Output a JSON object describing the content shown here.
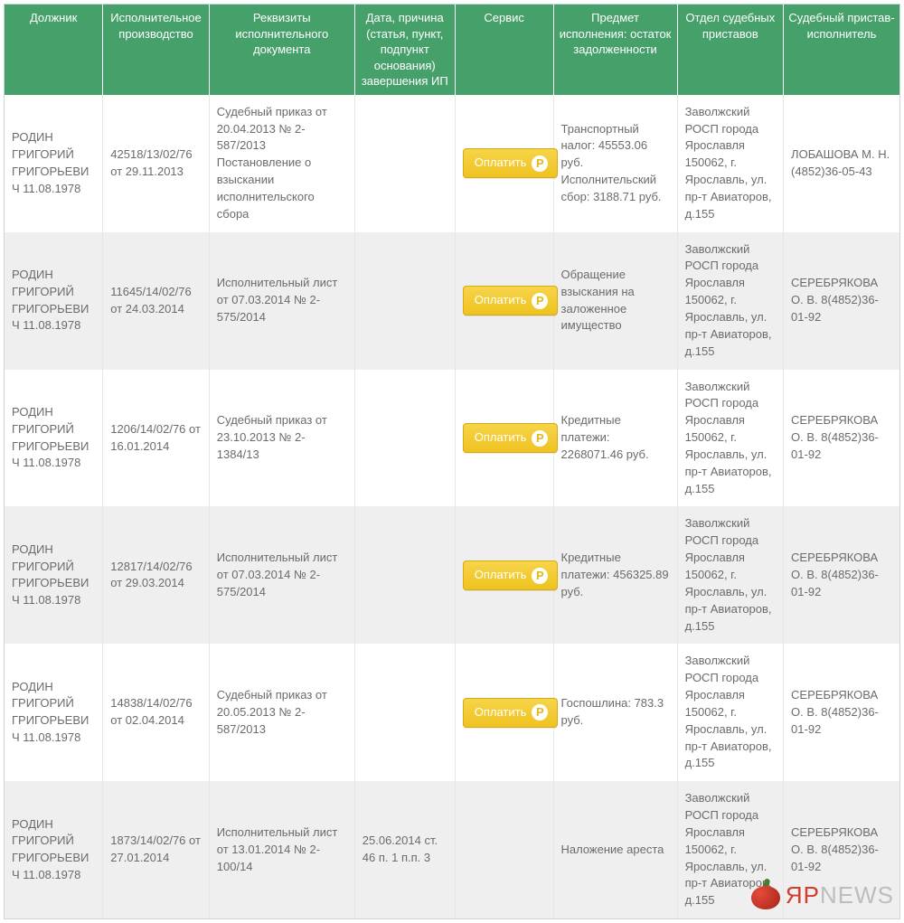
{
  "colors": {
    "header_bg": "#46a06a",
    "header_text": "#ffffff",
    "row_odd": "#ffffff",
    "row_even": "#efefef",
    "cell_text": "#6b6b6b",
    "cell_border": "#e6e6e6",
    "btn_top": "#f6d54a",
    "btn_bottom": "#efc21f",
    "btn_border": "#d9a813",
    "wm_red": "#d43a2e",
    "wm_gray": "#bdbdbd"
  },
  "columns": [
    "Должник",
    "Исполнительное производство",
    "Реквизиты исполнительного документа",
    "Дата, причина (статья, пункт, подпункт основания) завершения ИП",
    "Сервис",
    "Предмет исполнения: остаток задолженности",
    "Отдел судебных приставов",
    "Судебный пристав-исполнитель"
  ],
  "pay_label": "Оплатить",
  "ruble_glyph": "Р",
  "rows": [
    {
      "debtor": "РОДИН ГРИГОРИЙ ГРИГОРЬЕВИЧ 11.08.1978",
      "proc": "42518/13/02/76 от 29.11.2013",
      "doc": "Судебный приказ от 20.04.2013 № 2-587/2013 Постановление о взыскании исполнительского сбора",
      "date": "",
      "has_pay": true,
      "subject": "Транспортный налог: 45553.06 руб. Исполнительский сбор: 3188.71 руб.",
      "dept": "Заволжский РОСП города Ярославля 150062, г. Ярославль, ул. пр-т Авиаторов, д.155",
      "officer": "ЛОБАШОВА М. Н. (4852)36-05-43"
    },
    {
      "debtor": "РОДИН ГРИГОРИЙ ГРИГОРЬЕВИЧ 11.08.1978",
      "proc": "11645/14/02/76 от 24.03.2014",
      "doc": "Исполнительный лист от 07.03.2014 № 2-575/2014",
      "date": "",
      "has_pay": true,
      "subject": "Обращение взыскания на заложенное имущество",
      "dept": "Заволжский РОСП города Ярославля 150062, г. Ярославль, ул. пр-т Авиаторов, д.155",
      "officer": "СЕРЕБРЯКОВА О. В. 8(4852)36-01-92"
    },
    {
      "debtor": "РОДИН ГРИГОРИЙ ГРИГОРЬЕВИЧ 11.08.1978",
      "proc": "1206/14/02/76 от 16.01.2014",
      "doc": "Судебный приказ от 23.10.2013 № 2-1384/13",
      "date": "",
      "has_pay": true,
      "subject": "Кредитные платежи: 2268071.46 руб.",
      "dept": "Заволжский РОСП города Ярославля 150062, г. Ярославль, ул. пр-т Авиаторов, д.155",
      "officer": "СЕРЕБРЯКОВА О. В. 8(4852)36-01-92"
    },
    {
      "debtor": "РОДИН ГРИГОРИЙ ГРИГОРЬЕВИЧ 11.08.1978",
      "proc": "12817/14/02/76 от 29.03.2014",
      "doc": "Исполнительный лист от 07.03.2014 № 2-575/2014",
      "date": "",
      "has_pay": true,
      "subject": "Кредитные платежи: 456325.89 руб.",
      "dept": "Заволжский РОСП города Ярославля 150062, г. Ярославль, ул. пр-т Авиаторов, д.155",
      "officer": "СЕРЕБРЯКОВА О. В. 8(4852)36-01-92"
    },
    {
      "debtor": "РОДИН ГРИГОРИЙ ГРИГОРЬЕВИЧ 11.08.1978",
      "proc": "14838/14/02/76 от 02.04.2014",
      "doc": "Судебный приказ от 20.05.2013 № 2-587/2013",
      "date": "",
      "has_pay": true,
      "subject": "Госпошлина: 783.3 руб.",
      "dept": "Заволжский РОСП города Ярославля 150062, г. Ярославль, ул. пр-т Авиаторов, д.155",
      "officer": "СЕРЕБРЯКОВА О. В. 8(4852)36-01-92"
    },
    {
      "debtor": "РОДИН ГРИГОРИЙ ГРИГОРЬЕВИЧ 11.08.1978",
      "proc": "1873/14/02/76 от 27.01.2014",
      "doc": "Исполнительный лист от 13.01.2014 № 2-100/14",
      "date": "25.06.2014 ст. 46 п. 1 п.п. 3",
      "has_pay": false,
      "subject": "Наложение ареста",
      "dept": "Заволжский РОСП города Ярославля 150062, г. Ярославль, ул. пр-т Авиаторов, д.155",
      "officer": "СЕРЕБРЯКОВА О. В. 8(4852)36-01-92"
    }
  ],
  "watermark": {
    "red": "ЯР",
    "gray": "NEWS"
  }
}
